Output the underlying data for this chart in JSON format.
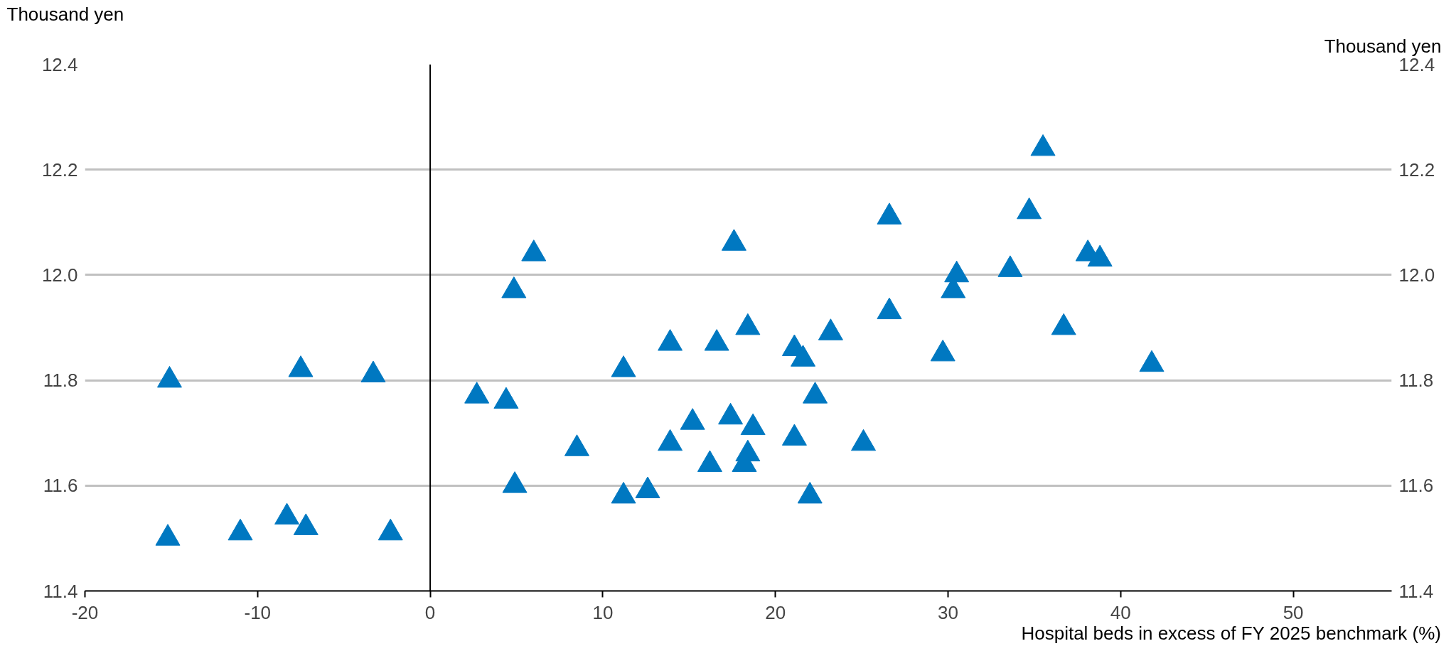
{
  "chart_data": {
    "type": "scatter",
    "xlabel": "Hospital beds in excess of FY 2025 benchmark (%)",
    "ylabel": "Thousand yen",
    "y2label": "Thousand yen",
    "marker": "triangle",
    "grid": "y",
    "xlim": [
      -20,
      55.7
    ],
    "xticks": [
      -20,
      -10,
      0,
      10,
      20,
      30,
      40,
      50
    ],
    "ylim": [
      11.4,
      12.4
    ],
    "yticks": [
      11.4,
      11.6,
      11.8,
      {
        "value": 12,
        "label": "12.0"
      },
      12.2,
      12.4
    ],
    "y2lim": [
      11.4,
      12.4
    ],
    "y2ticks": [
      11.4,
      11.6,
      11.8,
      {
        "value": 12,
        "label": "12.0"
      },
      12.2,
      12.4
    ],
    "ref_lines": [
      {
        "axis": "x",
        "value": 0,
        "label": null,
        "color": "#000000"
      }
    ],
    "series": [
      {
        "color": "#0078c1",
        "x": [
          -15.1,
          -7.5,
          -3.3,
          -15.2,
          -11.0,
          -8.3,
          -7.2,
          -2.3,
          6.0,
          4.85,
          17.6,
          18.4,
          13.9,
          16.6,
          21.1,
          21.6,
          11.2,
          2.7,
          4.4,
          8.5,
          15.2,
          17.4,
          18.7,
          13.9,
          18.4,
          16.2,
          18.2,
          21.1,
          4.9,
          11.2,
          12.6,
          35.5,
          26.6,
          34.7,
          38.1,
          38.8,
          33.6,
          30.5,
          30.3,
          26.6,
          23.2,
          36.7,
          29.7,
          41.8,
          22.3,
          25.1,
          22.0
        ],
        "values": [
          11.8,
          11.82,
          11.81,
          11.5,
          11.51,
          11.54,
          11.52,
          11.51,
          12.04,
          11.97,
          12.06,
          11.9,
          11.87,
          11.87,
          11.86,
          11.84,
          11.82,
          11.77,
          11.76,
          11.67,
          11.72,
          11.73,
          11.71,
          11.68,
          11.66,
          11.64,
          11.64,
          11.69,
          11.6,
          11.58,
          11.59,
          12.24,
          12.11,
          12.12,
          12.04,
          12.03,
          12.01,
          12.0,
          11.97,
          11.93,
          11.89,
          11.9,
          11.85,
          11.83,
          11.77,
          11.68,
          11.58
        ]
      }
    ]
  }
}
